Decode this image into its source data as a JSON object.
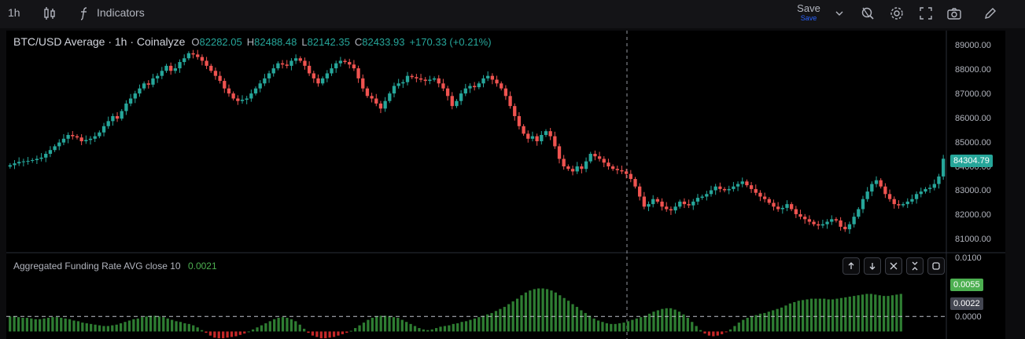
{
  "toolbar": {
    "interval": "1h",
    "indicators_label": "Indicators",
    "save_label": "Save",
    "save_sublabel": "Save",
    "icons": [
      "candles-icon",
      "fx-icon",
      "chevron-down-icon",
      "magnifier-icon",
      "gear-icon",
      "fullscreen-icon",
      "camera-icon",
      "pencil-icon"
    ]
  },
  "main_legend": {
    "title": "BTC/USD Average · 1h · Coinalyze",
    "o_label": "O",
    "o_value": "82282.05",
    "h_label": "H",
    "h_value": "82488.48",
    "l_label": "L",
    "l_value": "82142.35",
    "c_label": "C",
    "c_value": "82433.93",
    "change": "+170.33 (+0.21%)"
  },
  "indicator_legend": {
    "name": "Aggregated Funding Rate AVG close 10",
    "value": "0.0021"
  },
  "price_axis": {
    "ticks": [
      "89000.00",
      "88000.00",
      "87000.00",
      "86000.00",
      "85000.00",
      "84000.00",
      "83000.00",
      "82000.00",
      "81000.00"
    ],
    "last_price": "84304.79"
  },
  "funding_axis": {
    "ticks": [
      "0.0100",
      "0.0000"
    ],
    "current_tag": "0.0055",
    "avg_tag": "0.0022"
  },
  "colors": {
    "up": "#26a69a",
    "down": "#ef5350",
    "funding_pos": "#2e7d32",
    "funding_neg": "#c62828"
  },
  "chart_data": {
    "type": "candlestick",
    "symbol": "BTC/USD Average",
    "ylim": [
      80600,
      89400
    ],
    "close": [
      84050,
      84120,
      84180,
      84200,
      84220,
      84250,
      84300,
      84350,
      84500,
      84650,
      84800,
      84950,
      85100,
      85250,
      85200,
      85150,
      85000,
      85050,
      85100,
      85200,
      85350,
      85600,
      85800,
      86000,
      85900,
      86200,
      86500,
      86700,
      86900,
      87100,
      87300,
      87250,
      87500,
      87600,
      87800,
      88000,
      87800,
      87900,
      88150,
      88300,
      88500,
      88450,
      88350,
      88200,
      88000,
      87800,
      87600,
      87400,
      87100,
      86900,
      86700,
      86600,
      86650,
      86700,
      86900,
      87100,
      87300,
      87500,
      87700,
      87900,
      88100,
      88050,
      88000,
      88200,
      88300,
      88200,
      88000,
      87700,
      87500,
      87300,
      87500,
      87700,
      87900,
      88100,
      88200,
      88150,
      88050,
      87900,
      87500,
      87100,
      86800,
      86700,
      86500,
      86300,
      86600,
      86900,
      87200,
      87300,
      87350,
      87600,
      87550,
      87500,
      87450,
      87400,
      87450,
      87500,
      87300,
      87100,
      86800,
      86400,
      86600,
      86900,
      87100,
      87200,
      87150,
      87300,
      87500,
      87600,
      87450,
      87300,
      87100,
      86800,
      86400,
      86000,
      85600,
      85300,
      85100,
      85200,
      85000,
      85250,
      85400,
      85200,
      84800,
      84300,
      84000,
      83900,
      83800,
      84000,
      83900,
      84200,
      84500,
      84400,
      84300,
      84150,
      84000,
      83900,
      83850,
      83800,
      83700,
      83500,
      83200,
      82800,
      82400,
      82500,
      82700,
      82600,
      82400,
      82300,
      82250,
      82400,
      82600,
      82500,
      82450,
      82600,
      82750,
      82800,
      82900,
      83050,
      83200,
      83100,
      83050,
      83100,
      83200,
      83300,
      83400,
      83250,
      83100,
      82950,
      82800,
      82700,
      82550,
      82400,
      82300,
      82350,
      82500,
      82300,
      82100,
      82000,
      81900,
      81800,
      81700,
      81650,
      81700,
      81800,
      81900,
      81850,
      81600,
      81500,
      81700,
      82000,
      82300,
      82700,
      83000,
      83300,
      83450,
      83200,
      82900,
      82700,
      82500,
      82450,
      82500,
      82600,
      82700,
      82900,
      83000,
      83100,
      83150,
      83300,
      83600,
      84305
    ]
  },
  "funding_data": {
    "ylim": [
      -0.0011,
      0.0113
    ],
    "avg_line": 0.0022,
    "values": [
      0.0022,
      0.0022,
      0.0021,
      0.002,
      0.002,
      0.0019,
      0.0018,
      0.0018,
      0.0019,
      0.002,
      0.0021,
      0.0021,
      0.002,
      0.0019,
      0.0018,
      0.0016,
      0.0015,
      0.0013,
      0.0012,
      0.0011,
      0.001,
      0.0009,
      0.0008,
      0.0008,
      0.0009,
      0.001,
      0.0012,
      0.0014,
      0.0016,
      0.0018,
      0.0019,
      0.0021,
      0.0022,
      0.0023,
      0.0023,
      0.0022,
      0.0021,
      0.0019,
      0.0017,
      0.0015,
      0.0014,
      0.0012,
      0.0011,
      0.0009,
      0.0006,
      0.0002,
      -0.0002,
      -0.0006,
      -0.0009,
      -0.001,
      -0.001,
      -0.0009,
      -0.0008,
      -0.0007,
      -0.0005,
      -0.0003,
      0.0,
      0.0003,
      0.0006,
      0.0009,
      0.0012,
      0.0015,
      0.0018,
      0.002,
      0.0021,
      0.002,
      0.0018,
      0.0015,
      0.001,
      0.0004,
      -0.0002,
      -0.0006,
      -0.0008,
      -0.001,
      -0.001,
      -0.0009,
      -0.0008,
      -0.0006,
      -0.0004,
      -0.0002,
      0.0001,
      0.0005,
      0.0009,
      0.0013,
      0.0017,
      0.002,
      0.0022,
      0.0023,
      0.0023,
      0.0022,
      0.0021,
      0.002,
      0.0017,
      0.0014,
      0.0011,
      0.0008,
      0.0005,
      0.0003,
      0.0002,
      0.0003,
      0.0005,
      0.0007,
      0.0008,
      0.0009,
      0.0011,
      0.0012,
      0.0014,
      0.0015,
      0.0017,
      0.0019,
      0.0021,
      0.0023,
      0.0025,
      0.0027,
      0.003,
      0.0033,
      0.0036,
      0.004,
      0.0044,
      0.0048,
      0.0053,
      0.0057,
      0.006,
      0.0062,
      0.0063,
      0.0063,
      0.0062,
      0.006,
      0.0057,
      0.0053,
      0.0049,
      0.0045,
      0.004,
      0.0036,
      0.0031,
      0.0027,
      0.0023,
      0.0019,
      0.0016,
      0.0014,
      0.0012,
      0.0011,
      0.0011,
      0.0012,
      0.0013,
      0.0015,
      0.0017,
      0.0019,
      0.0021,
      0.0023,
      0.0026,
      0.0029,
      0.0031,
      0.0033,
      0.0034,
      0.0034,
      0.0032,
      0.0029,
      0.0025,
      0.002,
      0.0014,
      0.0008,
      0.0002,
      -0.0003,
      -0.0006,
      -0.0007,
      -0.0006,
      -0.0004,
      -0.0001,
      0.0003,
      0.0008,
      0.0013,
      0.0017,
      0.002,
      0.0022,
      0.0024,
      0.0026,
      0.0027,
      0.0029,
      0.0031,
      0.0033,
      0.0035,
      0.0038,
      0.0041,
      0.0043,
      0.0045,
      0.0046,
      0.0047,
      0.0048,
      0.0048,
      0.0048,
      0.0048,
      0.0047,
      0.0047,
      0.0048,
      0.0049,
      0.005,
      0.0051,
      0.0052,
      0.0053,
      0.0054,
      0.0055,
      0.0055,
      0.0054,
      0.0053,
      0.0052,
      0.0052,
      0.0053,
      0.0054,
      0.0055
    ]
  }
}
